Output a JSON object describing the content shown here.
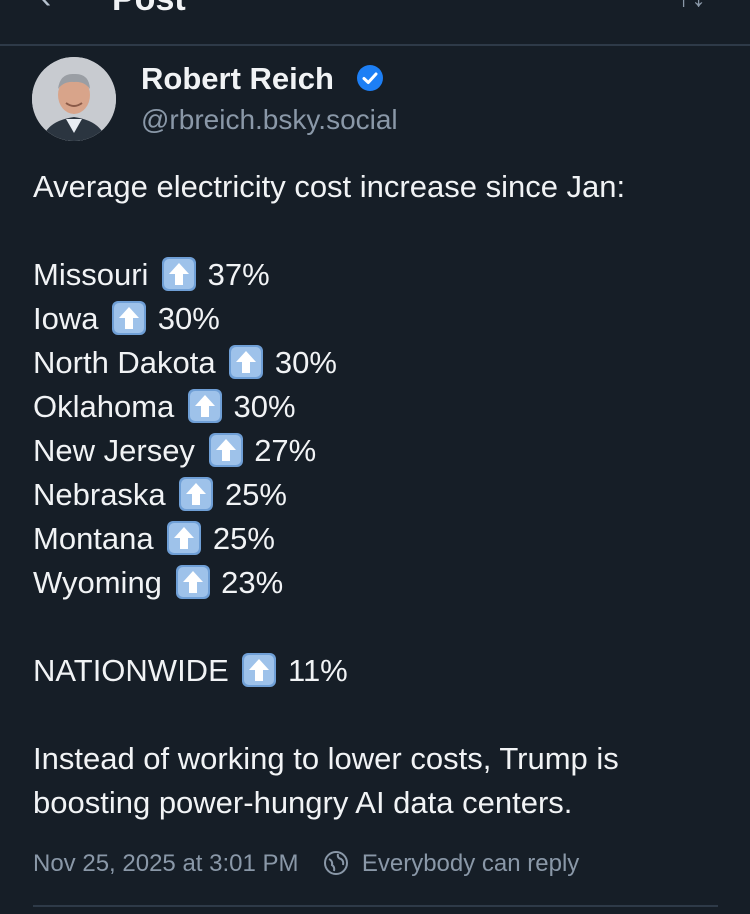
{
  "topbar": {
    "back_glyph": "‹",
    "title": "Post",
    "right_glyph": "↑↓"
  },
  "author": {
    "display_name": "Robert Reich",
    "handle": "@rbreich.bsky.social",
    "verified": true
  },
  "post": {
    "intro": "Average electricity cost increase since Jan:",
    "states": [
      {
        "name": "Missouri",
        "value": "37%"
      },
      {
        "name": "Iowa",
        "value": "30%"
      },
      {
        "name": "North Dakota",
        "value": "30%"
      },
      {
        "name": "Oklahoma",
        "value": "30%"
      },
      {
        "name": "New Jersey",
        "value": "27%"
      },
      {
        "name": "Nebraska",
        "value": "25%"
      },
      {
        "name": "Montana",
        "value": "25%"
      },
      {
        "name": "Wyoming",
        "value": "23%"
      }
    ],
    "nationwide": {
      "name": "NATIONWIDE",
      "value": "11%"
    },
    "closing": "Instead of working to lower costs, Trump is boosting power-hungry AI data centers."
  },
  "meta": {
    "timestamp": "Nov 25, 2025 at 3:01 PM",
    "reply_setting": "Everybody can reply"
  },
  "icons": {
    "arrow": "up-arrow-emoji",
    "verified": "verified-badge-icon",
    "reply": "globe-icon"
  },
  "colors": {
    "background": "#161e27",
    "text": "#f1f3f5",
    "muted": "#8a98a8",
    "verified": "#1d7ff5"
  }
}
